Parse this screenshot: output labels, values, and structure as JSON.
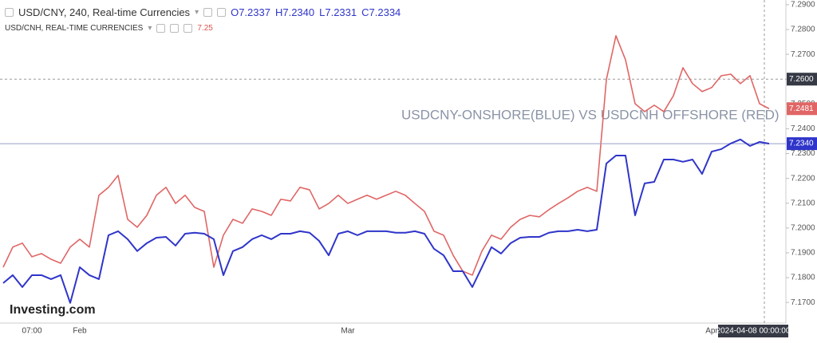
{
  "header": {
    "title": "USD/CNY, 240, Real-time Currencies",
    "ohlc": [
      "O7.2337",
      "H7.2340",
      "L7.2331",
      "C7.2334"
    ],
    "subtitle": "USD/CNH, REAL-TIME CURRENCIES",
    "sub_value": "7.25",
    "watermark": "Investing.com"
  },
  "chart_data": {
    "type": "line",
    "annotation": "USDCNY-ONSHORE(BLUE) VS USDCNH OFFSHORE (RED)",
    "categories": [
      null,
      null,
      null,
      "07:00",
      null,
      null,
      null,
      null,
      "Feb",
      null,
      null,
      null,
      null,
      null,
      null,
      null,
      null,
      null,
      null,
      null,
      null,
      null,
      null,
      null,
      null,
      null,
      null,
      null,
      null,
      null,
      null,
      null,
      null,
      null,
      null,
      null,
      "Mar",
      null,
      null,
      null,
      null,
      null,
      null,
      null,
      null,
      null,
      null,
      null,
      null,
      null,
      null,
      null,
      null,
      null,
      null,
      null,
      null,
      null,
      null,
      null,
      null,
      null,
      null,
      null,
      null,
      null,
      null,
      null,
      null,
      null,
      null,
      null,
      null,
      null,
      "Apr",
      null,
      null,
      null,
      null,
      null,
      null
    ],
    "series": [
      {
        "name": "USD/CNH",
        "color": "#e06666",
        "last_label": "7.2481",
        "values": [
          7.1842,
          7.1923,
          7.1939,
          7.1884,
          7.1897,
          7.1874,
          7.1858,
          7.1923,
          7.1955,
          7.1923,
          7.2132,
          7.2164,
          7.2212,
          7.2035,
          7.2003,
          7.2051,
          7.2132,
          7.2164,
          7.2099,
          7.2132,
          7.2083,
          7.2067,
          7.1842,
          7.1971,
          7.2035,
          7.2019,
          7.2077,
          7.2067,
          7.2051,
          7.2116,
          7.2109,
          7.2164,
          7.2154,
          7.2077,
          7.2099,
          7.2132,
          7.2099,
          7.2116,
          7.2132,
          7.2116,
          7.2132,
          7.2148,
          7.2132,
          7.2099,
          7.2067,
          7.1987,
          7.1971,
          7.189,
          7.1826,
          7.181,
          7.1907,
          7.1971,
          7.1955,
          7.2003,
          7.2035,
          7.2051,
          7.2045,
          7.2074,
          7.2099,
          7.2122,
          7.2148,
          7.2164,
          7.2148,
          7.2598,
          7.2775,
          7.2678,
          7.2501,
          7.2469,
          7.2495,
          7.2469,
          7.2533,
          7.2646,
          7.2582,
          7.255,
          7.2566,
          7.2614,
          7.262,
          7.2582,
          7.2614,
          7.2501,
          7.2481
        ]
      },
      {
        "name": "USD/CNY",
        "color": "#2f35c9",
        "last_label": "7.2340",
        "values": [
          7.1778,
          7.181,
          7.1762,
          7.181,
          7.181,
          7.1794,
          7.181,
          7.1698,
          7.1842,
          7.181,
          7.1794,
          7.1971,
          7.1987,
          7.1955,
          7.1907,
          7.1939,
          7.1961,
          7.1964,
          7.1929,
          7.1977,
          7.1981,
          7.1977,
          7.1955,
          7.181,
          7.1907,
          7.1923,
          7.1955,
          7.1971,
          7.1955,
          7.1977,
          7.1977,
          7.1987,
          7.1981,
          7.1948,
          7.189,
          7.1977,
          7.1987,
          7.1971,
          7.1987,
          7.1987,
          7.1987,
          7.1981,
          7.1981,
          7.1987,
          7.1977,
          7.1916,
          7.189,
          7.1826,
          7.1826,
          7.1762,
          7.1842,
          7.1923,
          7.1897,
          7.1939,
          7.1961,
          7.1964,
          7.1964,
          7.1981,
          7.1987,
          7.1987,
          7.1993,
          7.1987,
          7.1993,
          7.226,
          7.2292,
          7.2292,
          7.2051,
          7.218,
          7.2186,
          7.2276,
          7.2276,
          7.2267,
          7.2276,
          7.2218,
          7.2308,
          7.2318,
          7.2341,
          7.2357,
          7.2331,
          7.2347,
          7.234
        ]
      }
    ],
    "ylim": [
      7.1633,
      7.2919
    ],
    "yticks": [
      {
        "value": 7.17,
        "label": "7.1700"
      },
      {
        "value": 7.18,
        "label": "7.1800"
      },
      {
        "value": 7.19,
        "label": "7.1900"
      },
      {
        "value": 7.2,
        "label": "7.2000"
      },
      {
        "value": 7.21,
        "label": "7.2100"
      },
      {
        "value": 7.22,
        "label": "7.2200"
      },
      {
        "value": 7.23,
        "label": "7.2300"
      },
      {
        "value": 7.24,
        "label": "7.2400"
      },
      {
        "value": 7.25,
        "label": "7.2500"
      },
      {
        "value": 7.26,
        "label": "7.2600"
      },
      {
        "value": 7.27,
        "label": "7.2700"
      },
      {
        "value": 7.28,
        "label": "7.2800"
      },
      {
        "value": 7.29,
        "label": "7.2900"
      }
    ],
    "crosshair": {
      "value": 7.26,
      "label": "7.2600",
      "x_label": "2024-04-08 00:00:00"
    },
    "grid": false
  }
}
